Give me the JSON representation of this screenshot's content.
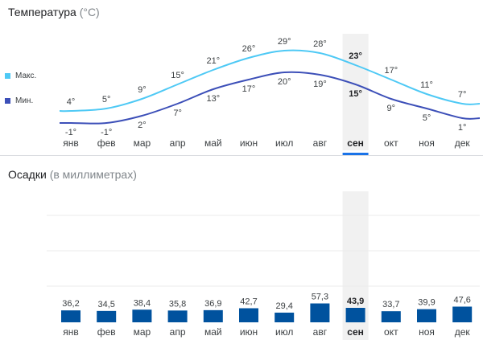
{
  "temperature": {
    "title": "Температура",
    "unit": "(°C)",
    "legend_max": "Макс.",
    "legend_min": "Мин.",
    "color_max": "#4ec9f5",
    "color_min": "#3c4fb8"
  },
  "precipitation": {
    "title": "Осадки",
    "unit": "(в миллиметрах)",
    "bar_color": "#00529e"
  },
  "selected_month": "сен",
  "chart_data": [
    {
      "type": "line",
      "categories": [
        "янв",
        "фев",
        "мар",
        "апр",
        "май",
        "июн",
        "июл",
        "авг",
        "сен",
        "окт",
        "ноя",
        "дек"
      ],
      "series": [
        {
          "name": "Макс.",
          "values": [
            4,
            5,
            9,
            15,
            21,
            26,
            29,
            28,
            23,
            17,
            11,
            7
          ],
          "labels": [
            "4°",
            "5°",
            "9°",
            "15°",
            "21°",
            "26°",
            "29°",
            "28°",
            "23°",
            "17°",
            "11°",
            "7°"
          ]
        },
        {
          "name": "Мин.",
          "values": [
            -1,
            -1,
            2,
            7,
            13,
            17,
            20,
            19,
            15,
            9,
            5,
            1
          ],
          "labels": [
            "-1°",
            "-1°",
            "2°",
            "7°",
            "13°",
            "17°",
            "20°",
            "19°",
            "15°",
            "9°",
            "5°",
            "1°"
          ]
        }
      ],
      "title": "Температура (°C)",
      "grid": false,
      "legend": "left"
    },
    {
      "type": "bar",
      "categories": [
        "янв",
        "фев",
        "мар",
        "апр",
        "май",
        "июн",
        "июл",
        "авг",
        "сен",
        "окт",
        "ноя",
        "дек"
      ],
      "values": [
        36.2,
        34.5,
        38.4,
        35.8,
        36.9,
        42.7,
        29.4,
        57.3,
        43.9,
        33.7,
        39.9,
        47.6
      ],
      "labels": [
        "36,2",
        "34,5",
        "38,4",
        "35,8",
        "36,9",
        "42,7",
        "29,4",
        "57,3",
        "43,9",
        "33,7",
        "39,9",
        "47,6"
      ],
      "title": "Осадки (в миллиметрах)",
      "grid": true
    }
  ]
}
